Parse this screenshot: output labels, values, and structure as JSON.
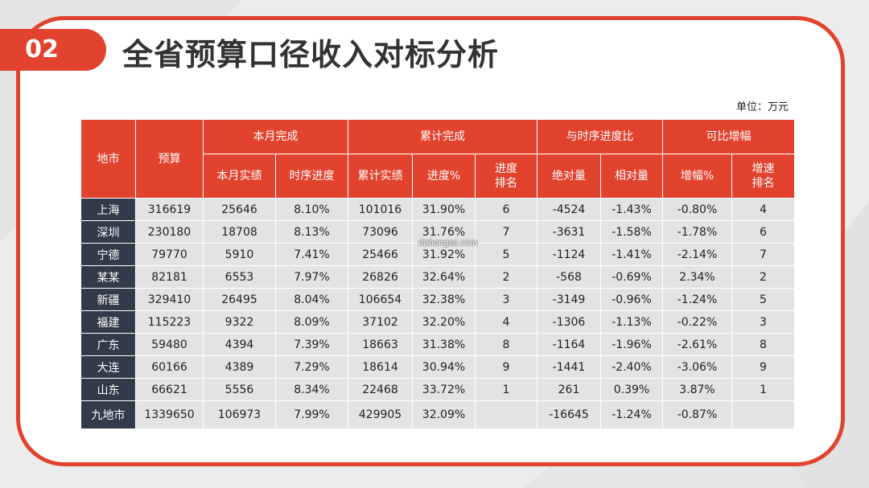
{
  "section_number": "02",
  "title": "全省预算口径收入对标分析",
  "unit": "单位：万元",
  "watermark": "dahongse.com",
  "table": {
    "headers": {
      "city": "地市",
      "budget": "预算",
      "month_group": "本月完成",
      "cum_group": "累计完成",
      "time_group": "与时序进度比",
      "comp_group": "可比增幅",
      "month_actual": "本月实绩",
      "time_progress": "时序进度",
      "cum_actual": "累计实绩",
      "progress_pct": "进度%",
      "progress_rank": "进度\n排名",
      "abs_diff": "绝对量",
      "rel_diff": "相对量",
      "growth_pct": "增幅%",
      "growth_rank": "增速\n排名"
    },
    "rows": [
      [
        "上海",
        "316619",
        "25646",
        "8.10%",
        "101016",
        "31.90%",
        "6",
        "-4524",
        "-1.43%",
        "-0.80%",
        "4"
      ],
      [
        "深圳",
        "230180",
        "18708",
        "8.13%",
        "73096",
        "31.76%",
        "7",
        "-3631",
        "-1.58%",
        "-1.78%",
        "6"
      ],
      [
        "宁德",
        "79770",
        "5910",
        "7.41%",
        "25466",
        "31.92%",
        "5",
        "-1124",
        "-1.41%",
        "-2.14%",
        "7"
      ],
      [
        "某某",
        "82181",
        "6553",
        "7.97%",
        "26826",
        "32.64%",
        "2",
        "-568",
        "-0.69%",
        "2.34%",
        "2"
      ],
      [
        "新疆",
        "329410",
        "26495",
        "8.04%",
        "106654",
        "32.38%",
        "3",
        "-3149",
        "-0.96%",
        "-1.24%",
        "5"
      ],
      [
        "福建",
        "115223",
        "9322",
        "8.09%",
        "37102",
        "32.20%",
        "4",
        "-1306",
        "-1.13%",
        "-0.22%",
        "3"
      ],
      [
        "广东",
        "59480",
        "4394",
        "7.39%",
        "18663",
        "31.38%",
        "8",
        "-1164",
        "-1.96%",
        "-2.61%",
        "8"
      ],
      [
        "大连",
        "60166",
        "4389",
        "7.29%",
        "18614",
        "30.94%",
        "9",
        "-1441",
        "-2.40%",
        "-3.06%",
        "9"
      ],
      [
        "山东",
        "66621",
        "5556",
        "8.34%",
        "22468",
        "33.72%",
        "1",
        "261",
        "0.39%",
        "3.87%",
        "1"
      ],
      [
        "九地市",
        "1339650",
        "106973",
        "7.99%",
        "429905",
        "32.09%",
        "",
        "-16645",
        "-1.24%",
        "-0.87%",
        ""
      ]
    ]
  },
  "colors": {
    "accent": "#e2432f",
    "city_cell": "#333b4a",
    "data_cell": "#e3e3e3"
  }
}
